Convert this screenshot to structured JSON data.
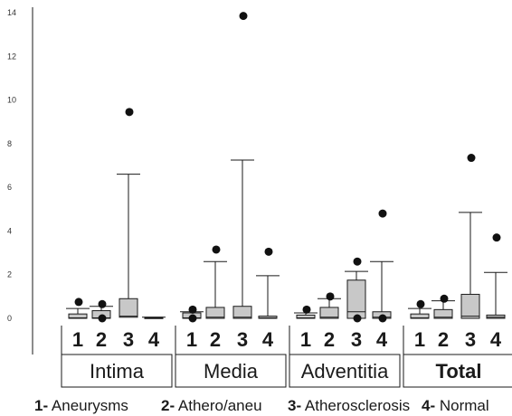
{
  "chart_data": {
    "type": "box",
    "ylim": [
      0,
      14
    ],
    "y_ticks": [
      0,
      2,
      4,
      6,
      8,
      10,
      12,
      14
    ],
    "y_tick_labels": [
      "0",
      "2",
      "4",
      "6",
      "8",
      "10",
      "12",
      "14"
    ],
    "category_labels": [
      "1",
      "2",
      "3",
      "4"
    ],
    "groups": [
      {
        "name": "Intima",
        "bold": false,
        "boxes": [
          {
            "category": "1",
            "q1": 0.0,
            "q3": 0.2,
            "median": 0.02,
            "whisker_high": 0.45,
            "outliers": [
              0.75
            ]
          },
          {
            "category": "2",
            "q1": 0.0,
            "q3": 0.35,
            "median": 0.02,
            "whisker_high": 0.55,
            "outliers": [
              0.65,
              0.0
            ]
          },
          {
            "category": "3",
            "q1": 0.05,
            "q3": 0.9,
            "median": 0.1,
            "whisker_high": 6.6,
            "outliers": [
              9.45
            ]
          },
          {
            "category": "4",
            "q1": 0.0,
            "q3": 0.05,
            "median": 0.02,
            "whisker_high": 0.05,
            "outliers": []
          }
        ]
      },
      {
        "name": "Media",
        "bold": false,
        "boxes": [
          {
            "category": "1",
            "q1": 0.0,
            "q3": 0.25,
            "median": 0.02,
            "whisker_high": 0.3,
            "outliers": [
              0.4,
              0.0
            ]
          },
          {
            "category": "2",
            "q1": 0.0,
            "q3": 0.5,
            "median": 0.05,
            "whisker_high": 2.6,
            "outliers": [
              3.15
            ]
          },
          {
            "category": "3",
            "q1": 0.0,
            "q3": 0.55,
            "median": 0.05,
            "whisker_high": 7.25,
            "outliers": [
              13.85
            ]
          },
          {
            "category": "4",
            "q1": 0.0,
            "q3": 0.1,
            "median": 0.02,
            "whisker_high": 1.95,
            "outliers": [
              3.05
            ]
          }
        ]
      },
      {
        "name": "Adventitia",
        "bold": false,
        "boxes": [
          {
            "category": "1",
            "q1": 0.0,
            "q3": 0.15,
            "median": 0.02,
            "whisker_high": 0.25,
            "outliers": [
              0.4
            ]
          },
          {
            "category": "2",
            "q1": 0.0,
            "q3": 0.5,
            "median": 0.05,
            "whisker_high": 0.9,
            "outliers": [
              1.0
            ]
          },
          {
            "category": "3",
            "q1": 0.0,
            "q3": 1.75,
            "median": 0.3,
            "whisker_high": 2.15,
            "outliers": [
              2.6,
              0.0
            ]
          },
          {
            "category": "4",
            "q1": 0.0,
            "q3": 0.3,
            "median": 0.05,
            "whisker_high": 2.6,
            "outliers": [
              4.8,
              0.0
            ]
          }
        ]
      },
      {
        "name": "Total",
        "bold": true,
        "boxes": [
          {
            "category": "1",
            "q1": 0.0,
            "q3": 0.2,
            "median": 0.02,
            "whisker_high": 0.45,
            "outliers": [
              0.65
            ]
          },
          {
            "category": "2",
            "q1": 0.0,
            "q3": 0.4,
            "median": 0.05,
            "whisker_high": 0.8,
            "outliers": [
              0.9
            ]
          },
          {
            "category": "3",
            "q1": 0.0,
            "q3": 1.1,
            "median": 0.1,
            "whisker_high": 4.85,
            "outliers": [
              7.35
            ]
          },
          {
            "category": "4",
            "q1": 0.0,
            "q3": 0.15,
            "median": 0.05,
            "whisker_high": 2.1,
            "outliers": [
              3.7
            ]
          }
        ]
      }
    ],
    "legend": [
      {
        "key": "1-",
        "label": "Aneurysms"
      },
      {
        "key": "2-",
        "label": "Athero/aneu"
      },
      {
        "key": "3-",
        "label": "Atherosclerosis"
      },
      {
        "key": "4-",
        "label": "Normal"
      }
    ],
    "colors": {
      "box_fill": "#c8c8c8",
      "stroke": "#1a1a1a",
      "outlier": "#111111"
    }
  }
}
